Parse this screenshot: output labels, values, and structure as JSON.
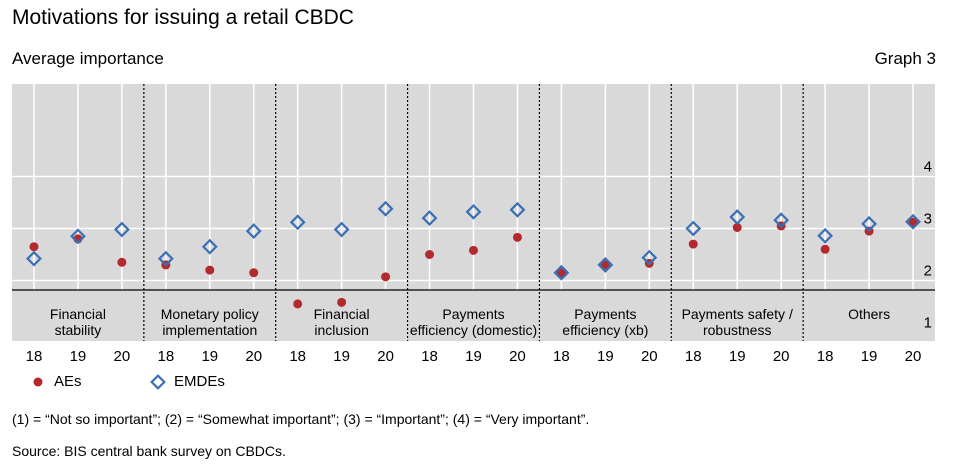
{
  "title": "Motivations for issuing a retail CBDC",
  "subtitle": "Average importance",
  "graph_label": "Graph 3",
  "note": "(1) = “Not so important”; (2) = “Somewhat important”; (3) = “Important”; (4) = “Very important”.",
  "source": "Source: BIS central bank survey on CBDCs.",
  "colors": {
    "aes": "#b22a2e",
    "emdes": "#3a6fb5",
    "background": "#d9d9d9",
    "grid": "#ffffff"
  },
  "chart_data": {
    "type": "scatter",
    "title": "Motivations for issuing a retail CBDC",
    "ylabel": "Average importance",
    "ylim": [
      1,
      4.6
    ],
    "yticks": [
      1,
      2,
      3,
      4
    ],
    "y_axis_side": "right",
    "grid": true,
    "legend_position": "bottom-left",
    "groups": [
      {
        "label": "Financial stability",
        "lines": [
          "Financial",
          "stability"
        ]
      },
      {
        "label": "Monetary policy implementation",
        "lines": [
          "Monetary policy",
          "implementation"
        ]
      },
      {
        "label": "Financial inclusion",
        "lines": [
          "Financial",
          "inclusion"
        ]
      },
      {
        "label": "Payments efficiency (domestic)",
        "lines": [
          "Payments",
          "efficiency (domestic)"
        ]
      },
      {
        "label": "Payments efficiency (xb)",
        "lines": [
          "Payments",
          "efficiency (xb)"
        ]
      },
      {
        "label": "Payments safety / robustness",
        "lines": [
          "Payments safety /",
          "robustness"
        ]
      },
      {
        "label": "Others",
        "lines": [
          "Others"
        ]
      }
    ],
    "years": [
      "18",
      "19",
      "20"
    ],
    "series": [
      {
        "name": "AEs",
        "marker": "circle",
        "values": [
          2.65,
          2.8,
          2.35,
          2.3,
          2.2,
          2.15,
          1.55,
          1.58,
          2.07,
          2.5,
          2.58,
          2.83,
          2.15,
          2.3,
          2.33,
          2.7,
          3.02,
          3.05,
          2.6,
          2.95,
          3.12
        ]
      },
      {
        "name": "EMDEs",
        "marker": "diamond",
        "values": [
          2.42,
          2.85,
          2.98,
          2.42,
          2.65,
          2.95,
          3.12,
          2.98,
          3.38,
          3.2,
          3.32,
          3.36,
          2.15,
          2.3,
          2.44,
          3.0,
          3.22,
          3.16,
          2.86,
          3.09,
          3.13
        ]
      }
    ]
  }
}
